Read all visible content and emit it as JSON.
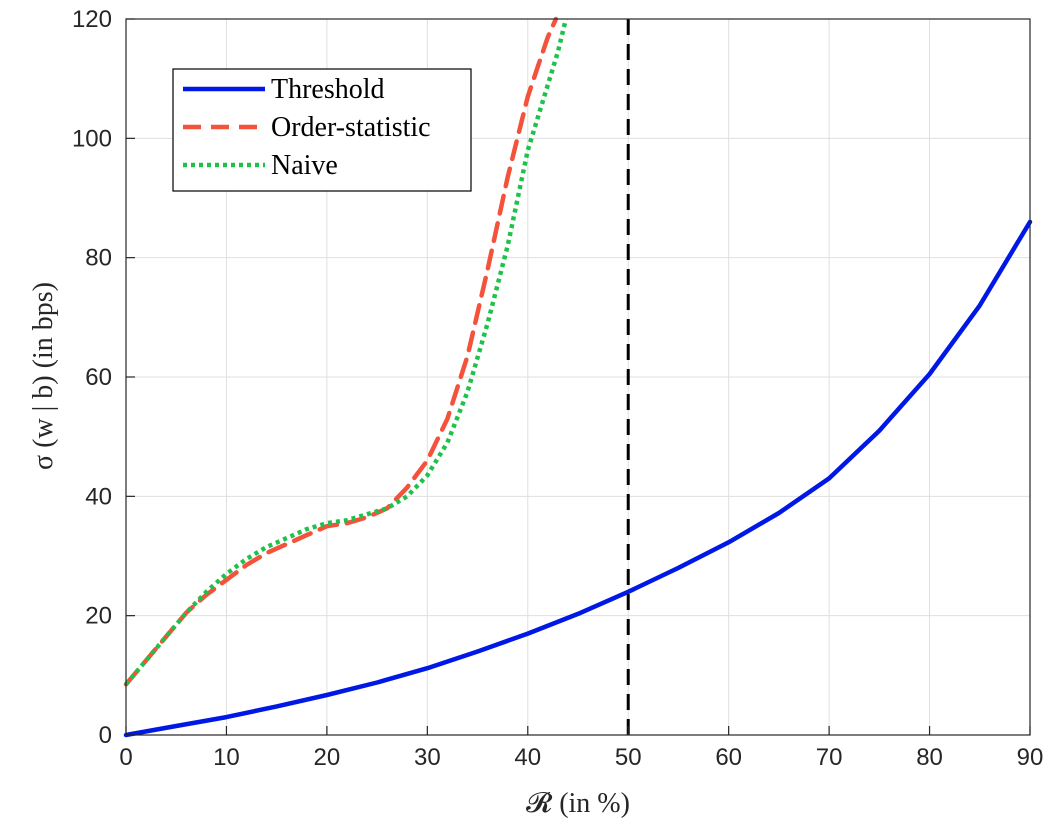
{
  "chart_data": {
    "type": "line",
    "xlabel": "𝓡 (in %)",
    "ylabel": "σ (w | b) (in bps)",
    "xlim": [
      0,
      90
    ],
    "ylim": [
      0,
      120
    ],
    "xticks": [
      "0",
      "10",
      "20",
      "30",
      "40",
      "50",
      "60",
      "70",
      "80",
      "90"
    ],
    "yticks": [
      "0",
      "20",
      "40",
      "60",
      "80",
      "100",
      "120"
    ],
    "grid": true,
    "legend_position": "top-left",
    "reference_line": {
      "x": 50,
      "color": "#000000",
      "style": "dashed"
    },
    "series": [
      {
        "name": "Threshold",
        "color": "#0018E6",
        "style": "solid",
        "x": [
          0,
          5,
          10,
          15,
          20,
          25,
          30,
          35,
          40,
          45,
          50,
          55,
          60,
          65,
          70,
          75,
          80,
          85,
          90
        ],
        "y": [
          0,
          1.5,
          3.0,
          4.8,
          6.7,
          8.8,
          11.2,
          14.0,
          17.0,
          20.3,
          24.0,
          28.0,
          32.3,
          37.2,
          43.0,
          51.0,
          60.5,
          72.0,
          86.0
        ]
      },
      {
        "name": "Order-statistic",
        "color": "#F4523A",
        "style": "dashed",
        "x": [
          0,
          2,
          4,
          6,
          8,
          10,
          12,
          14,
          16,
          18,
          20,
          22,
          24,
          26,
          28,
          30,
          32,
          34,
          36,
          38,
          40,
          41,
          42,
          42.8
        ],
        "y": [
          8.5,
          12.5,
          16.5,
          20.5,
          23.5,
          26.0,
          28.5,
          30.5,
          32.0,
          33.5,
          35.0,
          35.5,
          36.5,
          38.0,
          41.5,
          46.0,
          53.0,
          63.5,
          78.0,
          93.5,
          107.0,
          112.0,
          117.0,
          120.0
        ]
      },
      {
        "name": "Naive",
        "color": "#1EC24B",
        "style": "dotted",
        "x": [
          0,
          2,
          4,
          6,
          8,
          10,
          12,
          14,
          16,
          18,
          20,
          22,
          24,
          26,
          28,
          30,
          32,
          34,
          36,
          38,
          40,
          42,
          43,
          43.8
        ],
        "y": [
          8.5,
          12.5,
          16.5,
          20.5,
          24.0,
          27.0,
          29.5,
          31.5,
          33.0,
          34.5,
          35.5,
          36.0,
          37.0,
          38.0,
          40.0,
          43.5,
          49.0,
          57.5,
          69.0,
          82.0,
          98.0,
          109.0,
          114.5,
          120.0
        ]
      }
    ]
  }
}
